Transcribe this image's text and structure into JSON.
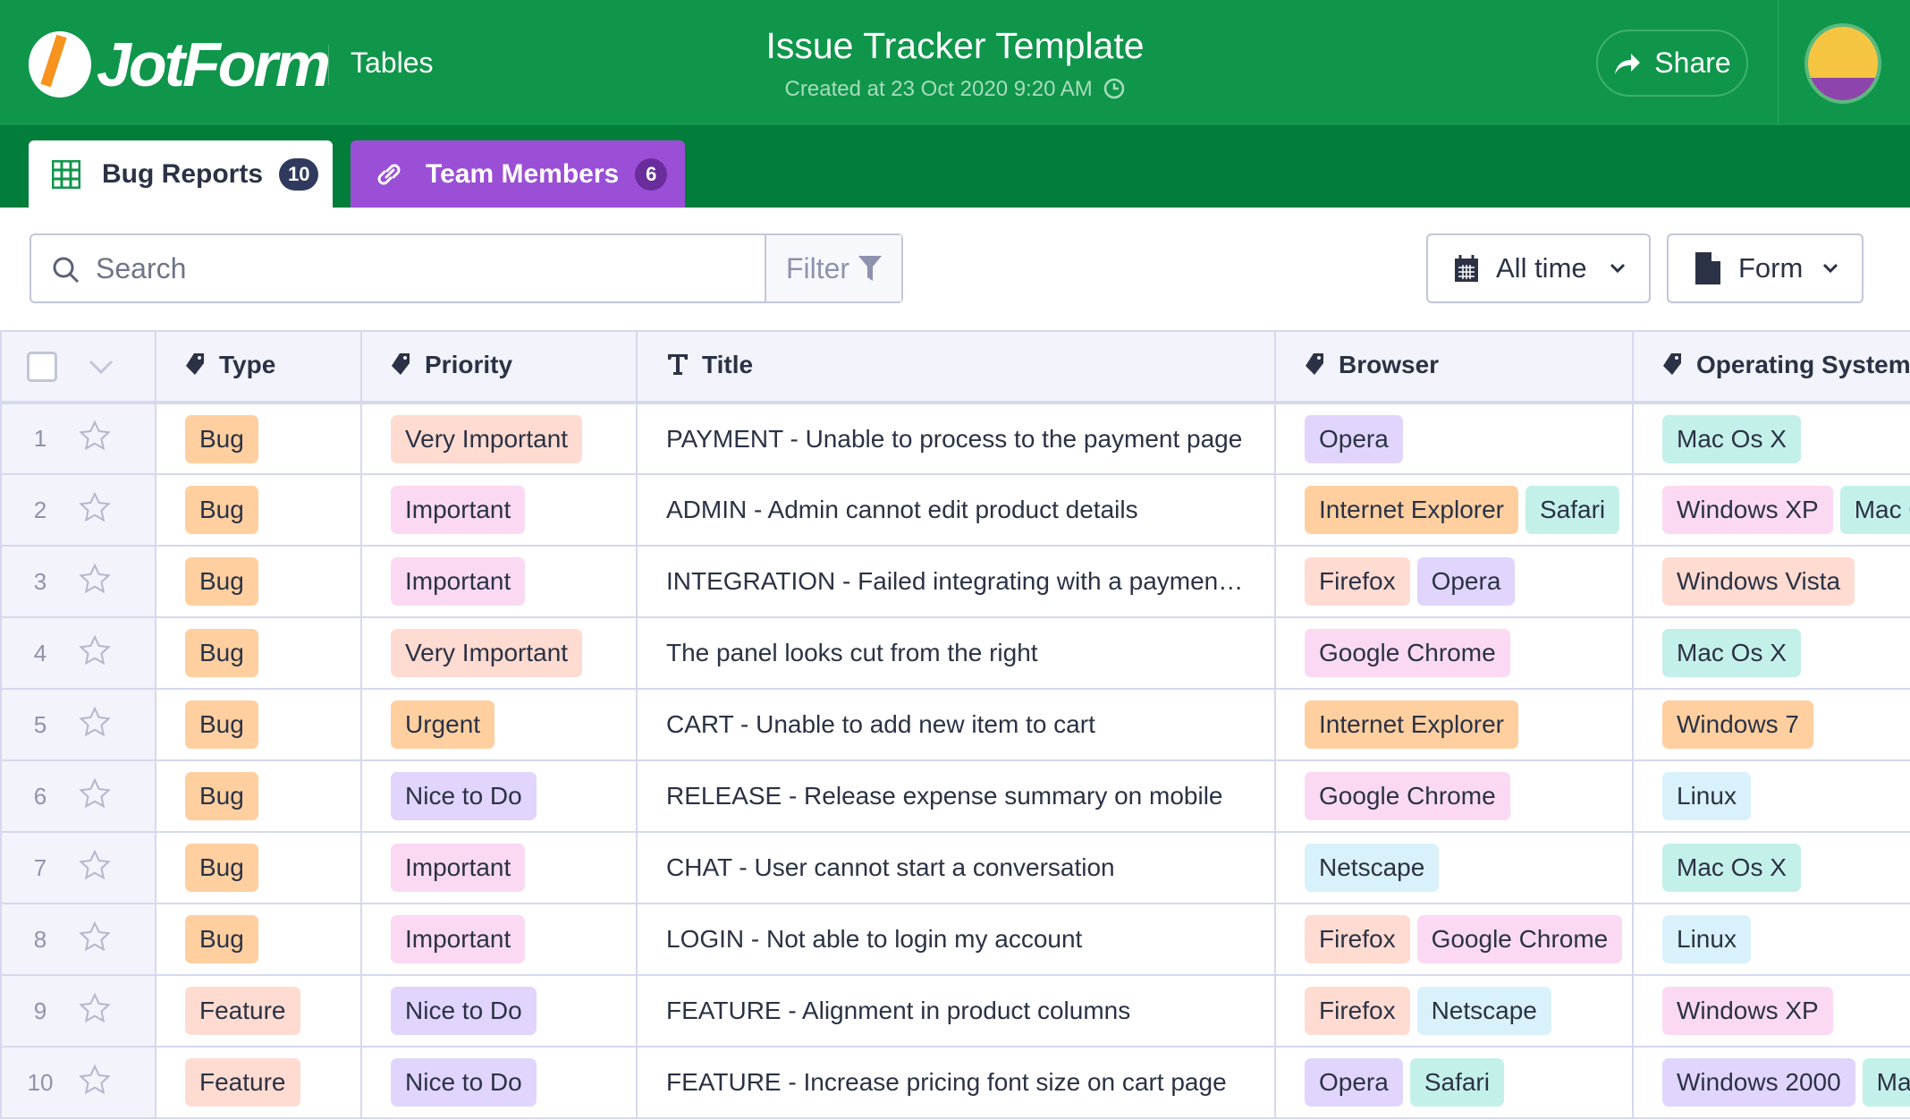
{
  "header": {
    "brand": "JotForm",
    "product": "Tables",
    "title": "Issue Tracker Template",
    "subtitle": "Created at 23 Oct 2020 9:20 AM",
    "share_label": "Share"
  },
  "tabs": [
    {
      "label": "Bug Reports",
      "count": "10",
      "icon": "grid-icon"
    },
    {
      "label": "Team Members",
      "count": "6",
      "icon": "link-icon"
    }
  ],
  "toolbar": {
    "search_placeholder": "Search",
    "filter_label": "Filter",
    "date_label": "All time",
    "view_label": "Form"
  },
  "colors": {
    "header": "#0f964b",
    "tabbar": "#027d3a",
    "team_tab": "#9b4ed6",
    "orange": "#ffcfa0",
    "salmon": "#ffdbd1",
    "pink": "#fbd9f3",
    "purple": "#e1d5fd",
    "teal": "#c4f0ea",
    "blue": "#d9f1fb"
  },
  "columns": [
    {
      "label": "Type",
      "icon": "tag-icon"
    },
    {
      "label": "Priority",
      "icon": "tag-icon"
    },
    {
      "label": "Title",
      "icon": "text-icon"
    },
    {
      "label": "Browser",
      "icon": "tag-icon"
    },
    {
      "label": "Operating System",
      "icon": "tag-icon"
    }
  ],
  "rows": [
    {
      "n": "1",
      "type": "Bug",
      "priority": "Very Important",
      "title": "PAYMENT - Unable to process to the payment page",
      "browser": [
        "Opera"
      ],
      "os": [
        "Mac Os X"
      ]
    },
    {
      "n": "2",
      "type": "Bug",
      "priority": "Important",
      "title": "ADMIN - Admin cannot edit product details",
      "browser": [
        "Internet Explorer",
        "Safari"
      ],
      "os": [
        "Windows XP",
        "Mac Os X"
      ]
    },
    {
      "n": "3",
      "type": "Bug",
      "priority": "Important",
      "title": "INTEGRATION - Failed integrating with a paymen…",
      "browser": [
        "Firefox",
        "Opera"
      ],
      "os": [
        "Windows Vista"
      ]
    },
    {
      "n": "4",
      "type": "Bug",
      "priority": "Very Important",
      "title": "The panel looks cut from the right",
      "browser": [
        "Google Chrome"
      ],
      "os": [
        "Mac Os X"
      ]
    },
    {
      "n": "5",
      "type": "Bug",
      "priority": "Urgent",
      "title": "CART - Unable to add new item to cart",
      "browser": [
        "Internet Explorer"
      ],
      "os": [
        "Windows 7"
      ]
    },
    {
      "n": "6",
      "type": "Bug",
      "priority": "Nice to Do",
      "title": "RELEASE - Release expense summary on mobile",
      "browser": [
        "Google Chrome"
      ],
      "os": [
        "Linux"
      ]
    },
    {
      "n": "7",
      "type": "Bug",
      "priority": "Important",
      "title": "CHAT - User cannot start a conversation",
      "browser": [
        "Netscape"
      ],
      "os": [
        "Mac Os X"
      ]
    },
    {
      "n": "8",
      "type": "Bug",
      "priority": "Important",
      "title": "LOGIN - Not able to login my account",
      "browser": [
        "Firefox",
        "Google Chrome"
      ],
      "os": [
        "Linux"
      ]
    },
    {
      "n": "9",
      "type": "Feature",
      "priority": "Nice to Do",
      "title": "FEATURE - Alignment in product columns",
      "browser": [
        "Firefox",
        "Netscape"
      ],
      "os": [
        "Windows XP"
      ]
    },
    {
      "n": "10",
      "type": "Feature",
      "priority": "Nice to Do",
      "title": "FEATURE - Increase pricing font size on cart page",
      "browser": [
        "Opera",
        "Safari"
      ],
      "os": [
        "Windows 2000",
        "Mac Os X"
      ]
    }
  ]
}
